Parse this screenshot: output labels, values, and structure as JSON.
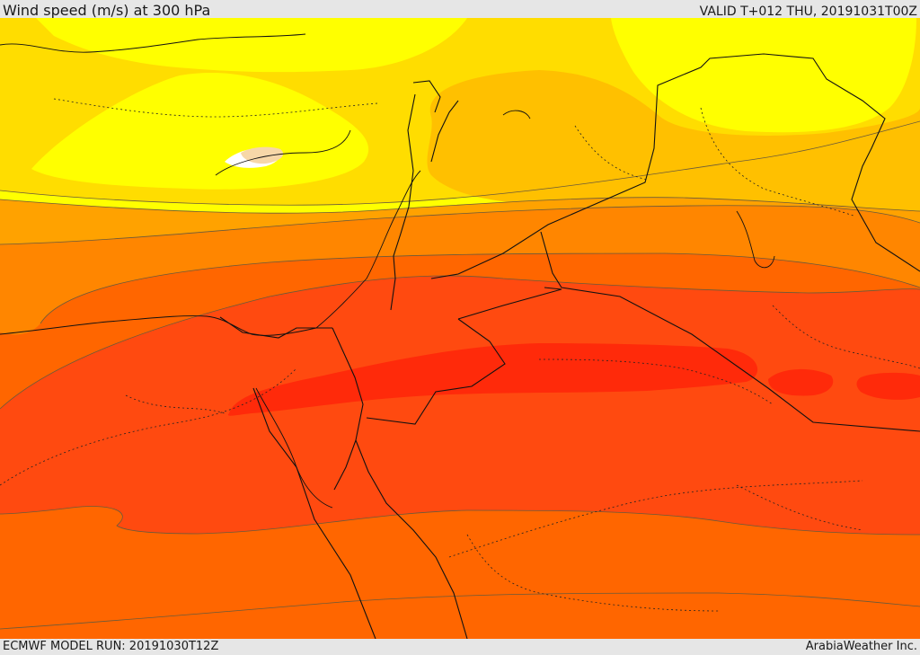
{
  "header": {
    "title": "Wind speed (m/s) at 300 hPa",
    "valid": "VALID T+012 THU, 20191031T00Z"
  },
  "footer": {
    "model_run": "ECMWF MODEL RUN: 20191030T12Z",
    "credit": "ArabiaWeather Inc."
  },
  "map": {
    "field": "wind speed",
    "level": "300 hPa",
    "unit": "m/s",
    "region": "Eastern Mediterranean / Middle East",
    "colors": {
      "band_1": "#ffff00",
      "band_2": "#ffdd00",
      "band_3": "#ffc000",
      "band_4": "#ffa200",
      "band_5": "#ff8600",
      "band_6": "#ff6600",
      "band_7": "#ff4a10",
      "band_8": "#ff2a0a",
      "low_fill": "#ffffff",
      "low_fill_2": "#f7d7a8",
      "country_border": "#111111",
      "province_border": "#222222",
      "contour": "#6a5a3a"
    }
  }
}
